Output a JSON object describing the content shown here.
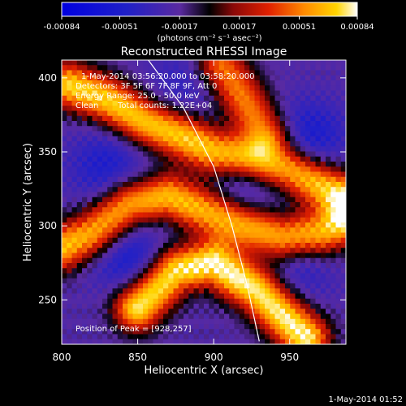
{
  "colorbar": {
    "tick_labels": [
      "-0.00084",
      "-0.00051",
      "-0.00017",
      "0.00017",
      "0.00051",
      "0.00084"
    ],
    "ticks": [
      -0.00084,
      -0.00051,
      -0.00017,
      0.00017,
      0.00051,
      0.00084
    ],
    "range": [
      -0.00084,
      0.00084
    ],
    "unit_label": "(photons cm⁻² s⁻¹ asec⁻²)"
  },
  "chart_data": {
    "type": "heatmap",
    "title": "Reconstructed RHESSI Image",
    "xlabel": "Heliocentric X (arcsec)",
    "ylabel": "Heliocentric Y (arcsec)",
    "xlim": [
      800,
      987
    ],
    "ylim": [
      220,
      412
    ],
    "xticks": [
      800,
      850,
      900,
      950
    ],
    "xtick_labels": [
      "800",
      "850",
      "900",
      "950"
    ],
    "yticks": [
      250,
      300,
      350,
      400
    ],
    "ytick_labels": [
      "250",
      "300",
      "350",
      "400"
    ],
    "grid": false,
    "limb_curve": [
      [
        857,
        412
      ],
      [
        880,
        380
      ],
      [
        900,
        340
      ],
      [
        912,
        300
      ],
      [
        922,
        260
      ],
      [
        930,
        222
      ]
    ],
    "annotations": [
      "1-May-2014 03:56:20.000 to 03:58:20.000",
      "Detectors: 3F 5F 6F 7F 8F 9F, Att 0",
      "Energy Range: 25.0 - 50.0 keV",
      "Clean",
      "Total counts: 1.22E+04"
    ],
    "peak_label": "Position of Peak = [928,257]",
    "peak": [
      928,
      257
    ],
    "bright_ridges": [
      {
        "points": [
          [
            805,
            395
          ],
          [
            830,
            385
          ],
          [
            855,
            370
          ],
          [
            880,
            360
          ],
          [
            900,
            350
          ],
          [
            925,
            345
          ],
          [
            950,
            338
          ],
          [
            975,
            325
          ],
          [
            987,
            320
          ]
        ],
        "intensity": 0.9
      },
      {
        "points": [
          [
            800,
            285
          ],
          [
            820,
            295
          ],
          [
            845,
            315
          ],
          [
            870,
            320
          ],
          [
            895,
            310
          ],
          [
            920,
            300
          ],
          [
            945,
            292
          ],
          [
            970,
            295
          ],
          [
            987,
            302
          ]
        ],
        "intensity": 0.85
      },
      {
        "points": [
          [
            850,
            245
          ],
          [
            875,
            270
          ],
          [
            900,
            275
          ],
          [
            915,
            265
          ],
          [
            928,
            257
          ],
          [
            945,
            240
          ],
          [
            960,
            225
          ]
        ],
        "intensity": 1.0
      },
      {
        "points": [
          [
            905,
            408
          ],
          [
            920,
            385
          ],
          [
            935,
            362
          ]
        ],
        "intensity": 0.7
      }
    ],
    "dim_blobs": [
      {
        "center": [
          830,
          340
        ],
        "strength": 0.8
      },
      {
        "center": [
          845,
          278
        ],
        "strength": 0.9
      },
      {
        "center": [
          920,
          328
        ],
        "strength": 0.7
      },
      {
        "center": [
          962,
          360
        ],
        "strength": 0.9
      },
      {
        "center": [
          955,
          272
        ],
        "strength": 0.6
      },
      {
        "center": [
          880,
          395
        ],
        "strength": 0.5
      }
    ]
  },
  "footer": {
    "timestamp": "1-May-2014 01:52"
  }
}
